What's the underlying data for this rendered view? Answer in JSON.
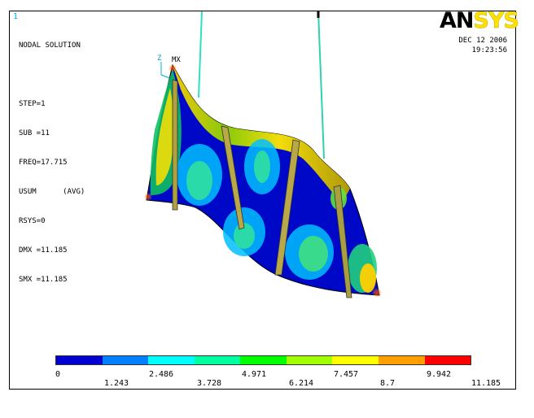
{
  "window_number": "1",
  "info_lines": [
    "NODAL SOLUTION",
    "",
    "STEP=1",
    "SUB =11",
    "FREQ=17.715",
    "USUM      (AVG)",
    "RSYS=0",
    "DMX =11.185",
    "SMX =11.185"
  ],
  "logo": {
    "part1": "AN",
    "part2": "SYS"
  },
  "date": "DEC 12 2006",
  "time": "19:23:56",
  "triad": {
    "z_label": "Z",
    "mx_label": "MX"
  },
  "legend": {
    "colors": [
      "#0000d0",
      "#0080ff",
      "#00ffff",
      "#00ffa0",
      "#00ff00",
      "#a0ff00",
      "#ffff00",
      "#ffa000",
      "#ff0000"
    ],
    "labels_top": [
      "0",
      "2.486",
      "4.971",
      "7.457",
      "9.942"
    ],
    "labels_bottom": [
      "1.243",
      "3.728",
      "6.214",
      "8.7",
      "11.185"
    ]
  }
}
